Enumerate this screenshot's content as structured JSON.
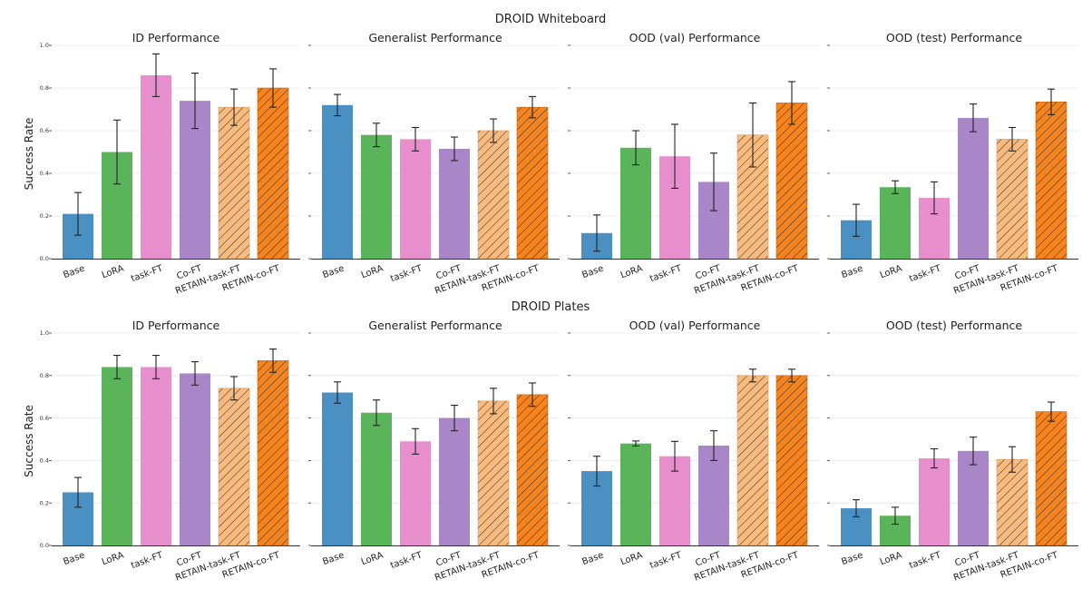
{
  "figure_title": "DROID Whiteboard / DROID Plates",
  "colors": {
    "Base": "#4a90c2",
    "LoRA": "#5ab55a",
    "task-FT": "#e78fcc",
    "Co-FT": "#a886c8",
    "RETAIN-task-FT": "#f7bb7f",
    "RETAIN-co-FT": "#f5841f",
    "hatch": "#3a2a1a"
  },
  "chart_data": [
    {
      "type": "bar",
      "group": "DROID Whiteboard",
      "title": "ID Performance",
      "ylabel": "Success Rate",
      "ylim": [
        0,
        1.0
      ],
      "yticks": [
        "0.0",
        "0.2",
        "0.4",
        "0.6",
        "0.8",
        "1.0"
      ],
      "categories": [
        "Base",
        "LoRA",
        "task-FT",
        "Co-FT",
        "RETAIN-task-FT",
        "RETAIN-co-FT"
      ],
      "values": [
        0.21,
        0.5,
        0.86,
        0.74,
        0.71,
        0.8
      ],
      "errors": [
        0.1,
        0.15,
        0.1,
        0.13,
        0.085,
        0.09
      ]
    },
    {
      "type": "bar",
      "group": "DROID Whiteboard",
      "title": "Generalist Performance",
      "ylim": [
        0,
        1.0
      ],
      "categories": [
        "Base",
        "LoRA",
        "task-FT",
        "Co-FT",
        "RETAIN-task-FT",
        "RETAIN-co-FT"
      ],
      "values": [
        0.72,
        0.58,
        0.56,
        0.515,
        0.6,
        0.71
      ],
      "errors": [
        0.05,
        0.055,
        0.055,
        0.055,
        0.055,
        0.05
      ]
    },
    {
      "type": "bar",
      "group": "DROID Whiteboard",
      "title": "OOD (val) Performance",
      "ylim": [
        0,
        1.0
      ],
      "categories": [
        "Base",
        "LoRA",
        "task-FT",
        "Co-FT",
        "RETAIN-task-FT",
        "RETAIN-co-FT"
      ],
      "values": [
        0.12,
        0.52,
        0.48,
        0.36,
        0.58,
        0.73
      ],
      "errors": [
        0.085,
        0.08,
        0.15,
        0.135,
        0.15,
        0.1
      ]
    },
    {
      "type": "bar",
      "group": "DROID Whiteboard",
      "title": "OOD (test) Performance",
      "ylim": [
        0,
        1.0
      ],
      "categories": [
        "Base",
        "LoRA",
        "task-FT",
        "Co-FT",
        "RETAIN-task-FT",
        "RETAIN-co-FT"
      ],
      "values": [
        0.18,
        0.335,
        0.285,
        0.66,
        0.56,
        0.735
      ],
      "errors": [
        0.075,
        0.03,
        0.075,
        0.065,
        0.055,
        0.06
      ]
    },
    {
      "type": "bar",
      "group": "DROID Plates",
      "title": "ID Performance",
      "ylabel": "Success Rate",
      "ylim": [
        0,
        1.0
      ],
      "yticks": [
        "0.0",
        "0.2",
        "0.4",
        "0.6",
        "0.8",
        "1.0"
      ],
      "categories": [
        "Base",
        "LoRA",
        "task-FT",
        "Co-FT",
        "RETAIN-task-FT",
        "RETAIN-co-FT"
      ],
      "values": [
        0.25,
        0.84,
        0.84,
        0.81,
        0.74,
        0.87
      ],
      "errors": [
        0.07,
        0.055,
        0.055,
        0.055,
        0.055,
        0.055
      ]
    },
    {
      "type": "bar",
      "group": "DROID Plates",
      "title": "Generalist Performance",
      "ylim": [
        0,
        1.0
      ],
      "categories": [
        "Base",
        "LoRA",
        "task-FT",
        "Co-FT",
        "RETAIN-task-FT",
        "RETAIN-co-FT"
      ],
      "values": [
        0.72,
        0.625,
        0.49,
        0.6,
        0.68,
        0.71
      ],
      "errors": [
        0.05,
        0.06,
        0.06,
        0.06,
        0.06,
        0.055
      ]
    },
    {
      "type": "bar",
      "group": "DROID Plates",
      "title": "OOD (val) Performance",
      "ylim": [
        0,
        1.0
      ],
      "categories": [
        "Base",
        "LoRA",
        "task-FT",
        "Co-FT",
        "RETAIN-task-FT",
        "RETAIN-co-FT"
      ],
      "values": [
        0.35,
        0.48,
        0.42,
        0.47,
        0.8,
        0.8
      ],
      "errors": [
        0.07,
        0.012,
        0.07,
        0.07,
        0.03,
        0.03
      ]
    },
    {
      "type": "bar",
      "group": "DROID Plates",
      "title": "OOD (test) Performance",
      "ylim": [
        0,
        1.0
      ],
      "categories": [
        "Base",
        "LoRA",
        "task-FT",
        "Co-FT",
        "RETAIN-task-FT",
        "RETAIN-co-FT"
      ],
      "values": [
        0.175,
        0.14,
        0.41,
        0.445,
        0.405,
        0.63
      ],
      "errors": [
        0.04,
        0.04,
        0.045,
        0.065,
        0.06,
        0.045
      ]
    }
  ],
  "row_titles": [
    "DROID Whiteboard",
    "DROID Plates"
  ]
}
